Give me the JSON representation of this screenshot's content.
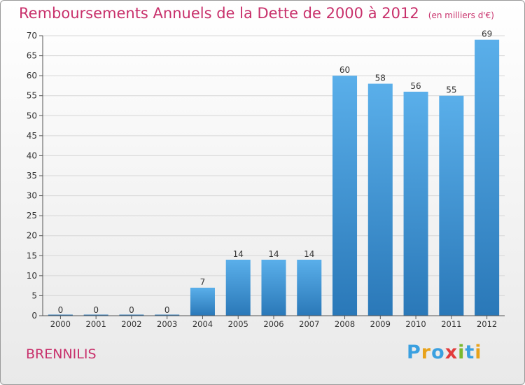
{
  "title": "Remboursements Annuels de la Dette de 2000 à 2012",
  "unit_note": "(en milliers d'€)",
  "commune": "BRENNILIS",
  "logo": {
    "text": "Proxiti",
    "letters": [
      {
        "char": "P",
        "color": "#3aa0e0"
      },
      {
        "char": "r",
        "color": "#e8a21a"
      },
      {
        "char": "o",
        "color": "#3aa0e0"
      },
      {
        "char": "x",
        "color": "#e23b3b"
      },
      {
        "char": "i",
        "color": "#7ab82e"
      },
      {
        "char": "t",
        "color": "#3aa0e0"
      },
      {
        "char": "i",
        "color": "#e8a21a"
      }
    ]
  },
  "colors": {
    "title": "#c8306b",
    "bar_top": "#5aafea",
    "bar_bottom": "#2a78b8",
    "grid": "#d6d6d6",
    "axis": "#555555"
  },
  "chart_data": {
    "type": "bar",
    "categories": [
      "2000",
      "2001",
      "2002",
      "2003",
      "2004",
      "2005",
      "2006",
      "2007",
      "2008",
      "2009",
      "2010",
      "2011",
      "2012"
    ],
    "values": [
      0,
      0,
      0,
      0,
      7,
      14,
      14,
      14,
      60,
      58,
      56,
      55,
      69
    ],
    "data_labels": [
      "0",
      "0",
      "0",
      "0",
      "7",
      "14",
      "14",
      "14",
      "60",
      "58",
      "56",
      "55",
      "69"
    ],
    "title": "Remboursements Annuels de la Dette de 2000 à 2012",
    "xlabel": "",
    "ylabel": "",
    "ylim": [
      0,
      70
    ],
    "yticks": [
      0,
      5,
      10,
      15,
      20,
      25,
      30,
      35,
      40,
      45,
      50,
      55,
      60,
      65,
      70
    ],
    "grid": true,
    "legend": "none"
  }
}
